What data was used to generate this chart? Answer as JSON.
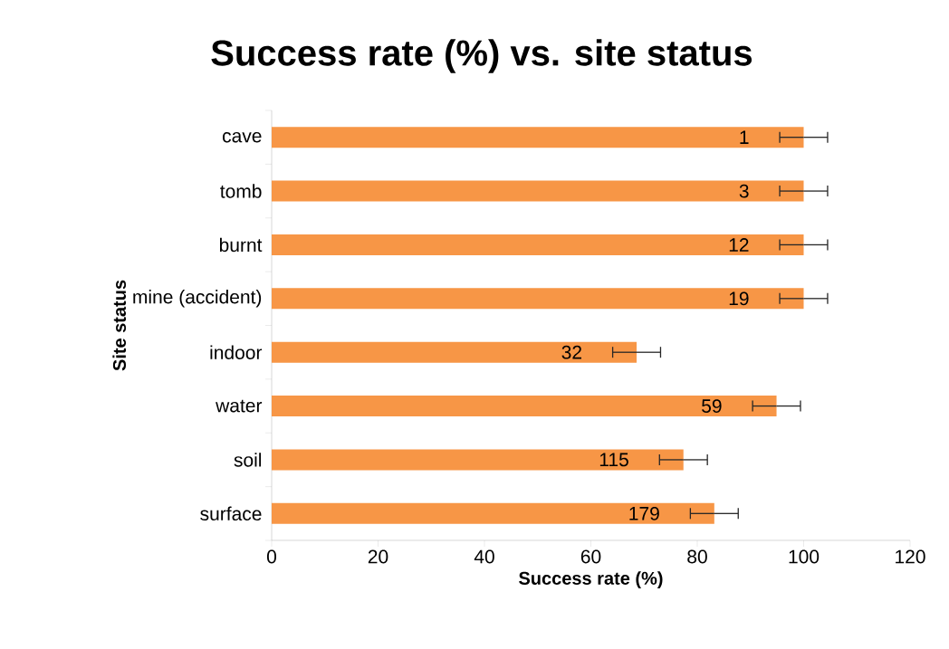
{
  "chart_data": {
    "type": "bar",
    "orientation": "horizontal",
    "title": "Success rate (%) vs. site status",
    "xlabel": "Success rate (%)",
    "ylabel": "Site status",
    "categories": [
      "cave",
      "tomb",
      "burnt",
      "mine (accident)",
      "indoor",
      "water",
      "soil",
      "surface"
    ],
    "values": [
      100,
      100,
      100,
      100,
      68.6,
      94.9,
      77.4,
      83.2
    ],
    "errors": [
      4.5,
      4.5,
      4.5,
      4.5,
      4.5,
      4.5,
      4.5,
      4.5
    ],
    "annotations": [
      "1",
      "3",
      "12",
      "19",
      "32",
      "59",
      "115",
      "179"
    ],
    "color": "#f79646",
    "xlim": [
      0,
      120
    ],
    "xticks": [
      0,
      20,
      40,
      60,
      80,
      100,
      120
    ],
    "grid": false
  }
}
